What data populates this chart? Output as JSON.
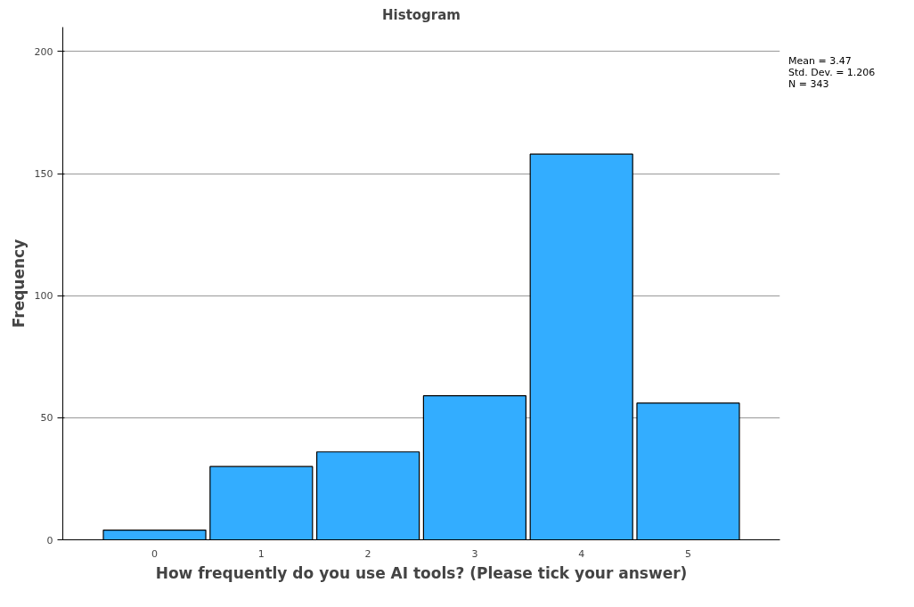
{
  "chart_data": {
    "type": "bar",
    "title": "Histogram",
    "xlabel": "How frequently do you use AI tools? (Please tick your answer)",
    "ylabel": "Frequency",
    "categories": [
      "0",
      "1",
      "2",
      "3",
      "4",
      "5"
    ],
    "values": [
      4,
      30,
      36,
      59,
      158,
      56
    ],
    "color": "#33adff",
    "ylim": [
      0,
      210
    ],
    "yticks": [
      0,
      50,
      100,
      150,
      200
    ],
    "grid": "y",
    "annotations": [
      "Mean = 3.47",
      "Std. Dev. = 1.206",
      "N = 343"
    ]
  }
}
